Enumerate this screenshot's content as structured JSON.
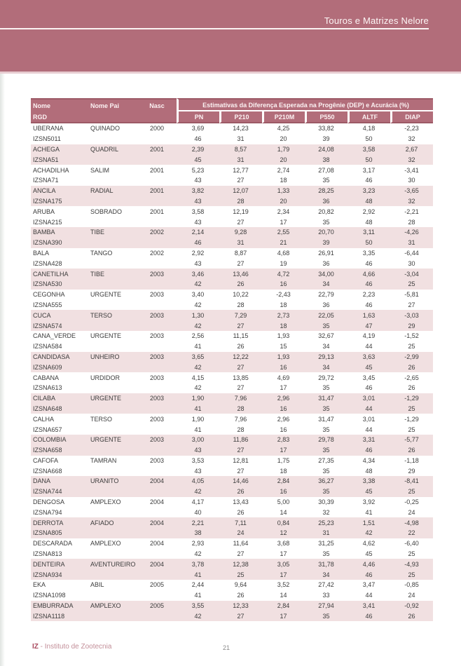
{
  "banner": {
    "title": "Touros e Matrizes Nelore"
  },
  "footer": {
    "brand": "IZ",
    "brand_rest": " - Instituto de Zootecnia",
    "page_number": "21"
  },
  "colors": {
    "banner_bg": "#b26d7a",
    "header_bg": "#b26d7a",
    "header_border": "#9c5a66",
    "row_stripe": "#f1e0e1",
    "footer_brand": "#a8495d",
    "footer_text": "#c38f99"
  },
  "table": {
    "header": {
      "col_nome": "Nome",
      "col_rgd": "RGD",
      "col_nome_pai": "Nome Pai",
      "col_nasc": "Nasc",
      "dep_title": "Estimativas da Diferença Esperada na Progênie (DEP) e Acurácia (%)",
      "dep_cols": [
        "PN",
        "P210",
        "P210M",
        "P550",
        "ALTF",
        "DIAP"
      ]
    },
    "rows": [
      {
        "nome": "UBERANA",
        "pai": "QUINADO",
        "nasc": "2000",
        "rgd": "IZSN5011",
        "dep": [
          "3,69",
          "14,23",
          "4,25",
          "33,82",
          "4,18",
          "-2,23"
        ],
        "acc": [
          "46",
          "31",
          "20",
          "39",
          "50",
          "32"
        ]
      },
      {
        "nome": "ACHEGA",
        "pai": "QUADRIL",
        "nasc": "2001",
        "rgd": "IZSNA51",
        "dep": [
          "2,39",
          "8,57",
          "1,79",
          "24,08",
          "3,58",
          "2,67"
        ],
        "acc": [
          "45",
          "31",
          "20",
          "38",
          "50",
          "32"
        ]
      },
      {
        "nome": "ACHADILHA",
        "pai": "SALIM",
        "nasc": "2001",
        "rgd": "IZSNA71",
        "dep": [
          "5,23",
          "12,77",
          "2,74",
          "27,08",
          "3,17",
          "-3,41"
        ],
        "acc": [
          "43",
          "27",
          "18",
          "35",
          "46",
          "30"
        ]
      },
      {
        "nome": "ANCILA",
        "pai": "RADIAL",
        "nasc": "2001",
        "rgd": "IZSNA175",
        "dep": [
          "3,82",
          "12,07",
          "1,33",
          "28,25",
          "3,23",
          "-3,65"
        ],
        "acc": [
          "43",
          "28",
          "20",
          "36",
          "48",
          "32"
        ]
      },
      {
        "nome": "ARUBA",
        "pai": "SOBRADO",
        "nasc": "2001",
        "rgd": "IZSNA215",
        "dep": [
          "3,58",
          "12,19",
          "2,34",
          "20,82",
          "2,92",
          "-2,21"
        ],
        "acc": [
          "43",
          "27",
          "17",
          "35",
          "48",
          "28"
        ]
      },
      {
        "nome": "BAMBA",
        "pai": "TIBE",
        "nasc": "2002",
        "rgd": "IZSNA390",
        "dep": [
          "2,14",
          "9,28",
          "2,55",
          "20,70",
          "3,11",
          "-4,26"
        ],
        "acc": [
          "46",
          "31",
          "21",
          "39",
          "50",
          "31"
        ]
      },
      {
        "nome": "BALA",
        "pai": "TANGO",
        "nasc": "2002",
        "rgd": "IZSNA428",
        "dep": [
          "2,92",
          "8,87",
          "4,68",
          "26,91",
          "3,35",
          "-6,44"
        ],
        "acc": [
          "43",
          "27",
          "19",
          "36",
          "46",
          "30"
        ]
      },
      {
        "nome": "CANETILHA",
        "pai": "TIBE",
        "nasc": "2003",
        "rgd": "IZSNA530",
        "dep": [
          "3,46",
          "13,46",
          "4,72",
          "34,00",
          "4,66",
          "-3,04"
        ],
        "acc": [
          "42",
          "26",
          "16",
          "34",
          "46",
          "25"
        ]
      },
      {
        "nome": "CEGONHA",
        "pai": "URGENTE",
        "nasc": "2003",
        "rgd": "IZSNA555",
        "dep": [
          "3,40",
          "10,22",
          "-2,43",
          "22,79",
          "2,23",
          "-5,81"
        ],
        "acc": [
          "42",
          "28",
          "18",
          "36",
          "46",
          "27"
        ]
      },
      {
        "nome": "CUCA",
        "pai": "TERSO",
        "nasc": "2003",
        "rgd": "IZSNA574",
        "dep": [
          "1,30",
          "7,29",
          "2,73",
          "22,05",
          "1,63",
          "-3,03"
        ],
        "acc": [
          "42",
          "27",
          "18",
          "35",
          "47",
          "29"
        ]
      },
      {
        "nome": "CANA_VERDE",
        "pai": "URGENTE",
        "nasc": "2003",
        "rgd": "IZSNA584",
        "dep": [
          "2,56",
          "11,15",
          "1,93",
          "32,67",
          "4,19",
          "-1,52"
        ],
        "acc": [
          "41",
          "26",
          "15",
          "34",
          "44",
          "25"
        ]
      },
      {
        "nome": "CANDIDASA",
        "pai": "UNHEIRO",
        "nasc": "2003",
        "rgd": "IZSNA609",
        "dep": [
          "3,65",
          "12,22",
          "1,93",
          "29,13",
          "3,63",
          "-2,99"
        ],
        "acc": [
          "42",
          "27",
          "16",
          "34",
          "45",
          "26"
        ]
      },
      {
        "nome": "CABANA",
        "pai": "URDIDOR",
        "nasc": "2003",
        "rgd": "IZSNA613",
        "dep": [
          "4,15",
          "13,85",
          "4,69",
          "29,72",
          "3,45",
          "-2,65"
        ],
        "acc": [
          "42",
          "27",
          "17",
          "35",
          "46",
          "26"
        ]
      },
      {
        "nome": "CILABA",
        "pai": "URGENTE",
        "nasc": "2003",
        "rgd": "IZSNA648",
        "dep": [
          "1,90",
          "7,96",
          "2,96",
          "31,47",
          "3,01",
          "-1,29"
        ],
        "acc": [
          "41",
          "28",
          "16",
          "35",
          "44",
          "25"
        ]
      },
      {
        "nome": "CALHA",
        "pai": "TERSO",
        "nasc": "2003",
        "rgd": "IZSNA657",
        "dep": [
          "1,90",
          "7,96",
          "2,96",
          "31,47",
          "3,01",
          "-1,29"
        ],
        "acc": [
          "41",
          "28",
          "16",
          "35",
          "44",
          "25"
        ]
      },
      {
        "nome": "COLOMBIA",
        "pai": "URGENTE",
        "nasc": "2003",
        "rgd": "IZSNA658",
        "dep": [
          "3,00",
          "11,86",
          "2,83",
          "29,78",
          "3,31",
          "-5,77"
        ],
        "acc": [
          "43",
          "27",
          "17",
          "35",
          "46",
          "26"
        ]
      },
      {
        "nome": "CAFOFA",
        "pai": "TAMRAN",
        "nasc": "2003",
        "rgd": "IZSNA668",
        "dep": [
          "3,53",
          "12,81",
          "1,75",
          "27,35",
          "4,34",
          "-1,18"
        ],
        "acc": [
          "43",
          "27",
          "18",
          "35",
          "48",
          "29"
        ]
      },
      {
        "nome": "DANA",
        "pai": "URANITO",
        "nasc": "2004",
        "rgd": "IZSNA744",
        "dep": [
          "4,05",
          "14,46",
          "2,84",
          "36,27",
          "3,38",
          "-8,41"
        ],
        "acc": [
          "42",
          "26",
          "16",
          "35",
          "45",
          "25"
        ]
      },
      {
        "nome": "DENGOSA",
        "pai": "AMPLEXO",
        "nasc": "2004",
        "rgd": "IZSNA794",
        "dep": [
          "4,17",
          "13,43",
          "5,00",
          "30,39",
          "3,92",
          "-0,25"
        ],
        "acc": [
          "40",
          "26",
          "14",
          "32",
          "41",
          "24"
        ]
      },
      {
        "nome": "DERROTA",
        "pai": "AFIADO",
        "nasc": "2004",
        "rgd": "IZSNA805",
        "dep": [
          "2,21",
          "7,11",
          "0,84",
          "25,23",
          "1,51",
          "-4,98"
        ],
        "acc": [
          "38",
          "24",
          "12",
          "31",
          "42",
          "22"
        ]
      },
      {
        "nome": "DESCARADA",
        "pai": "AMPLEXO",
        "nasc": "2004",
        "rgd": "IZSNA813",
        "dep": [
          "2,93",
          "11,64",
          "3,68",
          "31,25",
          "4,62",
          "-6,40"
        ],
        "acc": [
          "42",
          "27",
          "17",
          "35",
          "45",
          "25"
        ]
      },
      {
        "nome": "DENTEIRA",
        "pai": "AVENTUREIRO",
        "nasc": "2004",
        "rgd": "IZSNA934",
        "dep": [
          "3,78",
          "12,38",
          "3,05",
          "31,78",
          "4,46",
          "-4,93"
        ],
        "acc": [
          "41",
          "25",
          "17",
          "34",
          "46",
          "25"
        ]
      },
      {
        "nome": "EKA",
        "pai": "ABIL",
        "nasc": "2005",
        "rgd": "IZSNA1098",
        "dep": [
          "2,44",
          "9,64",
          "3,52",
          "27,42",
          "3,47",
          "-0,85"
        ],
        "acc": [
          "41",
          "26",
          "14",
          "33",
          "44",
          "24"
        ]
      },
      {
        "nome": "EMBURRADA",
        "pai": "AMPLEXO",
        "nasc": "2005",
        "rgd": "IZSNA1118",
        "dep": [
          "3,55",
          "12,33",
          "2,84",
          "27,94",
          "3,41",
          "-0,92"
        ],
        "acc": [
          "42",
          "27",
          "17",
          "35",
          "46",
          "26"
        ]
      }
    ]
  }
}
